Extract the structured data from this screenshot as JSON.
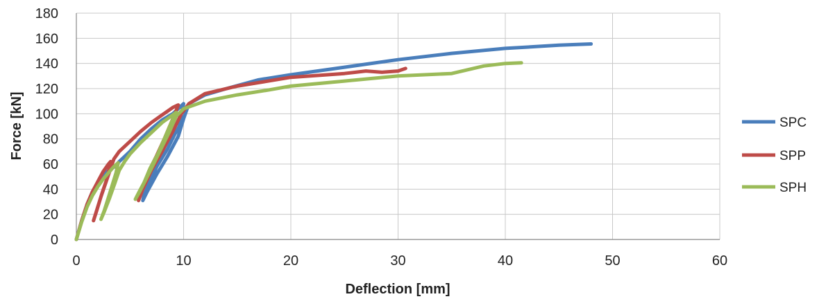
{
  "chart_data": {
    "type": "line",
    "title": "",
    "xlabel": "Deflection [mm]",
    "ylabel": "Force [kN]",
    "xlim": [
      0,
      60
    ],
    "ylim": [
      0,
      180
    ],
    "xticks": [
      0,
      10,
      20,
      30,
      40,
      50,
      60
    ],
    "yticks": [
      0,
      20,
      40,
      60,
      80,
      100,
      120,
      140,
      160,
      180
    ],
    "grid": true,
    "legend_position": "right",
    "series": [
      {
        "name": "SPC",
        "color": "#4a7ebb",
        "points": [
          [
            0,
            0
          ],
          [
            0.5,
            15
          ],
          [
            1,
            28
          ],
          [
            1.5,
            38
          ],
          [
            2,
            45
          ],
          [
            2.5,
            51
          ],
          [
            3,
            55
          ],
          [
            3.6,
            58
          ],
          [
            4,
            62
          ],
          [
            5,
            70
          ],
          [
            6,
            80
          ],
          [
            7,
            88
          ],
          [
            8,
            95
          ],
          [
            9,
            100
          ],
          [
            9.5,
            104
          ],
          [
            10,
            108
          ],
          [
            9.8,
            100
          ],
          [
            9.6,
            90
          ],
          [
            9.2,
            84
          ],
          [
            8.5,
            72
          ],
          [
            7.5,
            58
          ],
          [
            6.8,
            45
          ],
          [
            6.3,
            35
          ],
          [
            6.2,
            31
          ],
          [
            6.6,
            38
          ],
          [
            7.5,
            52
          ],
          [
            8.5,
            66
          ],
          [
            9.5,
            82
          ],
          [
            10,
            96
          ],
          [
            10.5,
            108
          ],
          [
            12,
            115
          ],
          [
            14,
            120
          ],
          [
            17,
            127
          ],
          [
            20,
            131
          ],
          [
            25,
            137
          ],
          [
            30,
            143
          ],
          [
            35,
            148
          ],
          [
            40,
            152
          ],
          [
            45,
            154.5
          ],
          [
            48,
            155.5
          ]
        ]
      },
      {
        "name": "SPP",
        "color": "#be4b48",
        "points": [
          [
            0,
            0
          ],
          [
            0.5,
            15
          ],
          [
            1,
            28
          ],
          [
            1.5,
            38
          ],
          [
            2,
            46
          ],
          [
            2.5,
            54
          ],
          [
            3,
            60
          ],
          [
            3.2,
            62
          ],
          [
            3.1,
            58
          ],
          [
            2.8,
            47
          ],
          [
            2.4,
            37
          ],
          [
            2,
            26
          ],
          [
            1.6,
            15
          ],
          [
            1.9,
            23
          ],
          [
            2.3,
            34
          ],
          [
            2.7,
            44
          ],
          [
            3.1,
            54
          ],
          [
            3.5,
            64
          ],
          [
            4,
            70
          ],
          [
            5,
            78
          ],
          [
            6,
            86
          ],
          [
            7,
            93
          ],
          [
            8,
            99
          ],
          [
            9,
            105
          ],
          [
            9.5,
            107
          ],
          [
            9.2,
            100
          ],
          [
            8.7,
            90
          ],
          [
            8.2,
            80
          ],
          [
            7.5,
            67
          ],
          [
            6.8,
            55
          ],
          [
            6.2,
            42
          ],
          [
            5.8,
            31
          ],
          [
            6.2,
            40
          ],
          [
            7,
            55
          ],
          [
            8,
            70
          ],
          [
            9,
            86
          ],
          [
            9.8,
            100
          ],
          [
            10.5,
            108
          ],
          [
            12,
            116
          ],
          [
            15,
            122
          ],
          [
            20,
            129
          ],
          [
            25,
            132
          ],
          [
            27,
            134
          ],
          [
            28.5,
            133
          ],
          [
            30,
            134
          ],
          [
            30.7,
            136
          ]
        ]
      },
      {
        "name": "SPH",
        "color": "#9bbb59",
        "points": [
          [
            0,
            0
          ],
          [
            0.5,
            14
          ],
          [
            1,
            26
          ],
          [
            1.5,
            35
          ],
          [
            2,
            42
          ],
          [
            2.5,
            48
          ],
          [
            3,
            53
          ],
          [
            3.5,
            58
          ],
          [
            3.9,
            61
          ],
          [
            3.7,
            53
          ],
          [
            3.3,
            42
          ],
          [
            2.9,
            31
          ],
          [
            2.6,
            23
          ],
          [
            2.3,
            16
          ],
          [
            2.6,
            22
          ],
          [
            3.1,
            33
          ],
          [
            3.6,
            45
          ],
          [
            4,
            55
          ],
          [
            4.5,
            62
          ],
          [
            5,
            68
          ],
          [
            6,
            77
          ],
          [
            7,
            85
          ],
          [
            8,
            93
          ],
          [
            9,
            99
          ],
          [
            9.3,
            101
          ],
          [
            8.8,
            92
          ],
          [
            8.2,
            80
          ],
          [
            7.6,
            68
          ],
          [
            6.9,
            57
          ],
          [
            6.3,
            45
          ],
          [
            5.8,
            37
          ],
          [
            5.5,
            32
          ],
          [
            5.9,
            38
          ],
          [
            6.5,
            48
          ],
          [
            7.2,
            60
          ],
          [
            8,
            74
          ],
          [
            8.7,
            86
          ],
          [
            9.3,
            98
          ],
          [
            10,
            104
          ],
          [
            12,
            110
          ],
          [
            15,
            115
          ],
          [
            18,
            119
          ],
          [
            20,
            122
          ],
          [
            25,
            126
          ],
          [
            30,
            130
          ],
          [
            35,
            132
          ],
          [
            38,
            138
          ],
          [
            40,
            140
          ],
          [
            41.5,
            140.5
          ]
        ]
      }
    ]
  }
}
